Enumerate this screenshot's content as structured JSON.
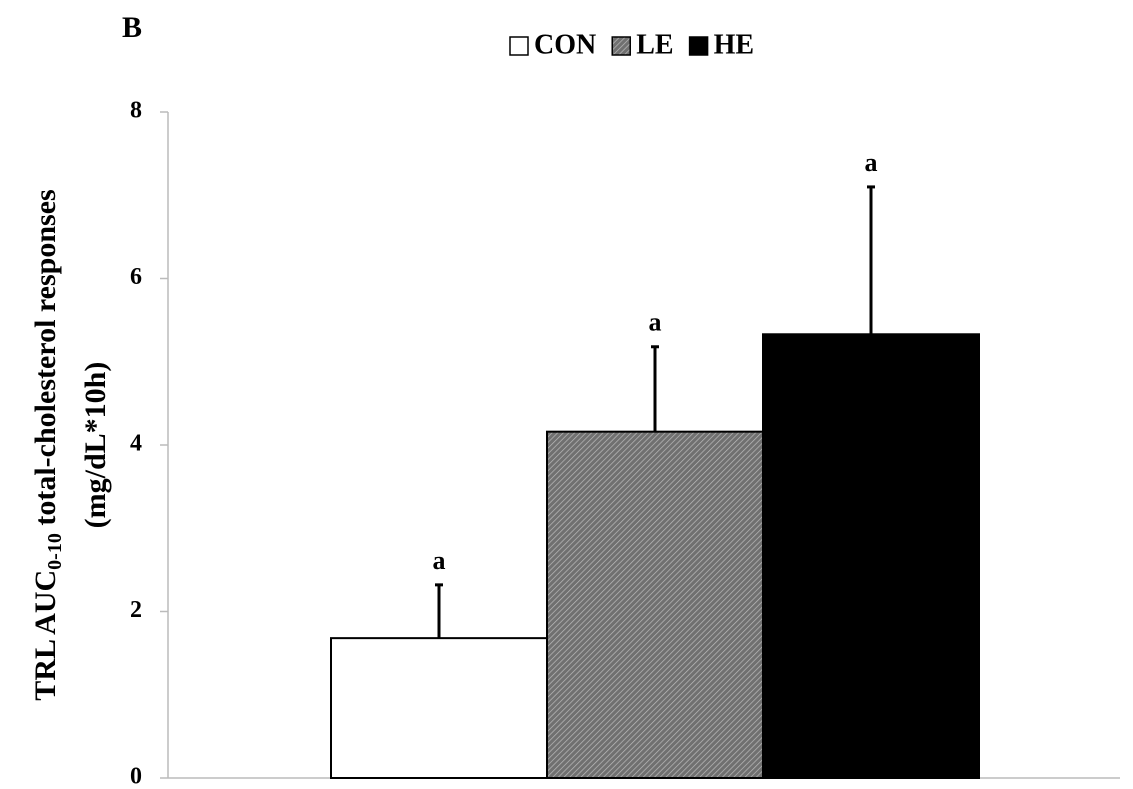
{
  "chart_data": {
    "type": "bar",
    "panel_label": "B",
    "ylabel": {
      "main": "TRL AUC",
      "sub": "0-10",
      "rest": " total-cholesterol responses",
      "line2": "(mg/dL*10h)"
    },
    "categories": [
      null
    ],
    "series": [
      {
        "name": "CON",
        "color": "#ffffff",
        "pattern": false,
        "values": [
          1.68
        ],
        "errors": [
          0.64
        ],
        "annotation": "a"
      },
      {
        "name": "LE",
        "color": "#707070",
        "pattern": true,
        "values": [
          4.16
        ],
        "errors": [
          1.02
        ],
        "annotation": "a"
      },
      {
        "name": "HE",
        "color": "#000000",
        "pattern": false,
        "values": [
          5.33
        ],
        "errors": [
          1.77
        ],
        "annotation": "a"
      }
    ],
    "ylim": [
      0,
      8
    ],
    "yticks": [
      0,
      2,
      4,
      6,
      8
    ],
    "grid": false
  }
}
